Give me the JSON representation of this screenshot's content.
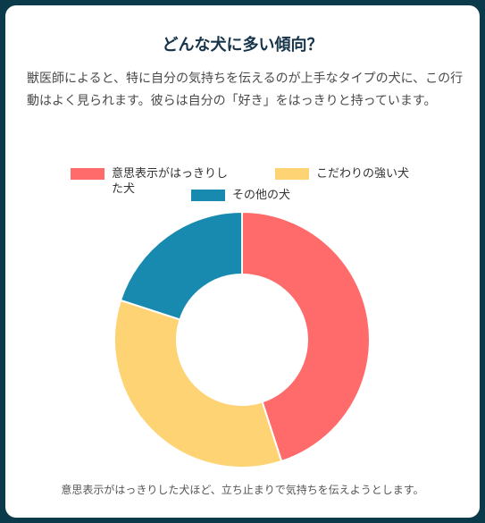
{
  "title": "どんな犬に多い傾向？",
  "description": "獣医師によると、特に自分の気持ちを伝えるのが上手なタイプの犬に、この行動はよく見られます。彼らは自分の「好き」をはっきりと持っています。",
  "footnote": "意思表示がはっきりした犬ほど、立ち止まりで気持ちを伝えようとします。",
  "chart_data": {
    "type": "pie",
    "style": "doughnut",
    "legend_position": "top",
    "series": [
      {
        "name": "意思表示がはっきりした犬",
        "value": 45,
        "color": "#ff6b6b"
      },
      {
        "name": "こだわりの強い犬",
        "value": 35,
        "color": "#fed374"
      },
      {
        "name": "その他の犬",
        "value": 20,
        "color": "#188ab0"
      }
    ]
  }
}
